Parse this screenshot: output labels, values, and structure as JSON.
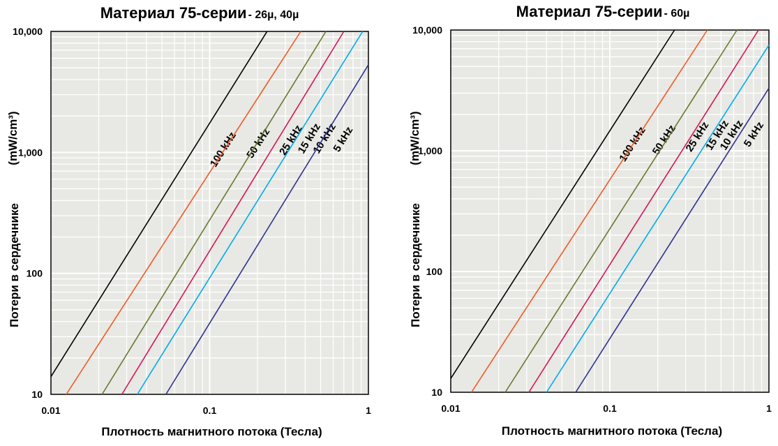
{
  "chart_data": [
    {
      "type": "line",
      "title": "Материал 75-серии",
      "subtitle": "- 26µ, 40µ",
      "xlabel": "Плотность магнитного потока (Тесла)",
      "ylabel_main": "Потери в сердечнике",
      "ylabel_unit": "(mW/cm³)",
      "xscale": "log",
      "yscale": "log",
      "xlim": [
        0.01,
        1
      ],
      "ylim": [
        10,
        10000
      ],
      "x_ticks": [
        "0.01",
        "0.1",
        "1"
      ],
      "y_ticks": [
        "10",
        "100",
        "1,000",
        "10,000"
      ],
      "grid": true,
      "series": [
        {
          "name": "100 kHz",
          "color": "#000000",
          "x": [
            0.01,
            0.23
          ],
          "y": [
            14,
            10000
          ],
          "label_x": 0.147,
          "label_y": 1400
        },
        {
          "name": "50 kHz",
          "color": "#ee5a24",
          "x": [
            0.0125,
            0.375
          ],
          "y": [
            10,
            10000
          ],
          "label_x": 0.24,
          "label_y": 1500
        },
        {
          "name": "25 kHz",
          "color": "#667a2e",
          "x": [
            0.021,
            0.54
          ],
          "y": [
            10,
            10000
          ],
          "label_x": 0.383,
          "label_y": 1600
        },
        {
          "name": "15 kHz",
          "color": "#d4145a",
          "x": [
            0.028,
            0.7
          ],
          "y": [
            10,
            10000
          ],
          "label_x": 0.5,
          "label_y": 1650
        },
        {
          "name": "10 kHz",
          "color": "#00aaee",
          "x": [
            0.035,
            0.92
          ],
          "y": [
            10,
            10000
          ],
          "label_x": 0.625,
          "label_y": 1650
        },
        {
          "name": "5 kHz",
          "color": "#2e3192",
          "x": [
            0.053,
            1
          ],
          "y": [
            10,
            5300
          ],
          "label_x": 0.8,
          "label_y": 1550
        }
      ]
    },
    {
      "type": "line",
      "title": "Материал 75-серии",
      "subtitle": "- 60µ",
      "xlabel": "Плотность магнитного потока (Тесла)",
      "ylabel_main": "Потери в сердечнике",
      "ylabel_unit": "(mW/cm³)",
      "xscale": "log",
      "yscale": "log",
      "xlim": [
        0.01,
        1
      ],
      "ylim": [
        10,
        10000
      ],
      "x_ticks": [
        "0.01",
        "0.1",
        "1"
      ],
      "y_ticks": [
        "10",
        "100",
        "1,000",
        "10,000"
      ],
      "grid": true,
      "series": [
        {
          "name": "100 kHz",
          "color": "#000000",
          "x": [
            0.01,
            0.255
          ],
          "y": [
            13,
            10000
          ],
          "label_x": 0.168,
          "label_y": 1500
        },
        {
          "name": "50 kHz",
          "color": "#ee5a24",
          "x": [
            0.0135,
            0.41
          ],
          "y": [
            10,
            10000
          ],
          "label_x": 0.26,
          "label_y": 1550
        },
        {
          "name": "25 kHz",
          "color": "#667a2e",
          "x": [
            0.022,
            0.63
          ],
          "y": [
            10,
            10000
          ],
          "label_x": 0.42,
          "label_y": 1650
        },
        {
          "name": "15 kHz",
          "color": "#d4145a",
          "x": [
            0.031,
            0.86
          ],
          "y": [
            10,
            10000
          ],
          "label_x": 0.56,
          "label_y": 1700
        },
        {
          "name": "10 kHz",
          "color": "#00aaee",
          "x": [
            0.04,
            1
          ],
          "y": [
            10,
            7500
          ],
          "label_x": 0.69,
          "label_y": 1700
        },
        {
          "name": "5 kHz",
          "color": "#2e3192",
          "x": [
            0.061,
            1
          ],
          "y": [
            10,
            3300
          ],
          "label_x": 0.93,
          "label_y": 1650
        }
      ]
    }
  ]
}
